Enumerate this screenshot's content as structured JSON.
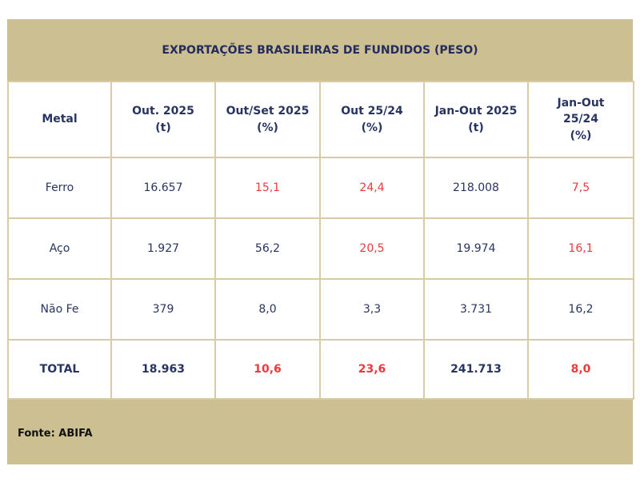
{
  "title": "EXPORTAÇÕES BRASILEIRAS DE FUNDIDOS (PESO)",
  "colors": {
    "header_bg": "#ccc092",
    "text": "#283562",
    "negative": "#ec3a3c"
  },
  "columns": [
    [
      "Metal"
    ],
    [
      "Out. 2025",
      "(t)"
    ],
    [
      "Out/Set 2025",
      "(%)"
    ],
    [
      "Out 25/24",
      "(%)"
    ],
    [
      "Jan-Out 2025",
      "(t)"
    ],
    [
      "Jan-Out",
      "25/24",
      "(%)"
    ]
  ],
  "rows": [
    {
      "cells": [
        "Ferro",
        "16.657",
        "15,1",
        "24,4",
        "218.008",
        "7,5"
      ],
      "red": [
        false,
        false,
        true,
        true,
        false,
        true
      ]
    },
    {
      "cells": [
        "Aço",
        "1.927",
        "56,2",
        "20,5",
        "19.974",
        "16,1"
      ],
      "red": [
        false,
        false,
        false,
        true,
        false,
        true
      ]
    },
    {
      "cells": [
        "Não Fe",
        "379",
        "8,0",
        "3,3",
        "3.731",
        "16,2"
      ],
      "red": [
        false,
        false,
        false,
        false,
        false,
        false
      ]
    }
  ],
  "total": {
    "cells": [
      "TOTAL",
      "18.963",
      "10,6",
      "23,6",
      "241.713",
      "8,0"
    ],
    "red": [
      false,
      false,
      true,
      true,
      false,
      true
    ]
  },
  "footer": "Fonte: ABIFA"
}
